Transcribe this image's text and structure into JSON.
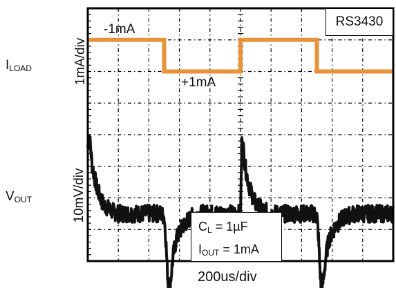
{
  "chart_data": {
    "type": "line",
    "badge": "RS3430",
    "xlabel": "200us/div",
    "iload_label": {
      "main": "I",
      "sub": "LOAD"
    },
    "vout_label": {
      "main": "V",
      "sub": "OUT"
    },
    "iload_scale": "1mA/div",
    "vout_scale": "10mV/div",
    "divisions": {
      "x": 10,
      "y": 8
    },
    "xlim": [
      0,
      2000
    ],
    "units": {
      "x": "us",
      "iload": "mA",
      "vout": "mV"
    },
    "annotations": {
      "step_low": "-1mA",
      "step_high": "+1mA",
      "cond1": {
        "main": "C",
        "sub": "L",
        "rest": " = 1µF"
      },
      "cond2": {
        "main": "I",
        "sub": "OUT",
        "rest": " = 1mA"
      }
    },
    "colors": {
      "iload": "#E8923A",
      "vout": "#111111",
      "grid": "#000000"
    },
    "series": [
      {
        "name": "I_LOAD",
        "x": [
          0,
          500,
          500,
          1000,
          1000,
          1500,
          1500,
          2000
        ],
        "y": [
          -1,
          -1,
          1,
          1,
          -1,
          -1,
          1,
          1
        ]
      },
      {
        "name": "V_OUT",
        "x": [
          0,
          10,
          30,
          60,
          100,
          150,
          200,
          300,
          400,
          480,
          500,
          510,
          520,
          530,
          545,
          560,
          580,
          620,
          680,
          750,
          850,
          950,
          1000,
          1010,
          1030,
          1060,
          1100,
          1150,
          1200,
          1300,
          1400,
          1480,
          1500,
          1510,
          1520,
          1530,
          1545,
          1560,
          1580,
          1620,
          1680,
          1750,
          1850,
          1950,
          2000
        ],
        "y": [
          1.6,
          2.0,
          1.0,
          0.3,
          -0.2,
          -0.4,
          -0.5,
          -0.5,
          -0.5,
          -0.5,
          -0.6,
          -1.2,
          -2.2,
          -3.0,
          -2.5,
          -1.8,
          -1.3,
          -0.9,
          -0.6,
          -0.5,
          -0.5,
          -0.5,
          -0.5,
          2.0,
          1.0,
          0.3,
          -0.2,
          -0.4,
          -0.5,
          -0.5,
          -0.5,
          -0.5,
          -0.6,
          -1.2,
          -2.2,
          -3.0,
          -2.5,
          -1.8,
          -1.3,
          -0.9,
          -0.6,
          -0.5,
          -0.5,
          -0.5,
          -0.5
        ]
      }
    ]
  }
}
